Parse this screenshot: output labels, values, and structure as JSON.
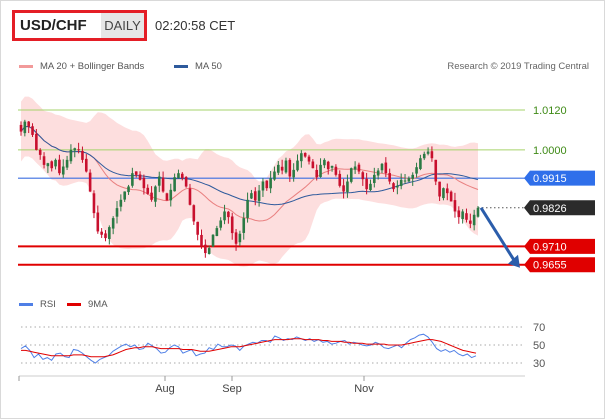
{
  "header": {
    "symbol": "USD/CHF",
    "period": "DAILY",
    "time": "02:20:58 CET"
  },
  "legend": {
    "ma20": "MA 20 + Bollinger Bands",
    "ma50": "MA 50",
    "copyright": "Research © 2019 Trading Central",
    "rsi": "RSI",
    "ma9": "9MA"
  },
  "colors": {
    "ma20": "#e98080",
    "band": "#fcd3d3",
    "ma50": "#2e5a9c",
    "up": "#2b7a44",
    "down": "#c8102e",
    "level_blue": "#3b6fe0",
    "level_red": "#e00000",
    "grid_green": "#a6d36b",
    "rsi": "#4f7fe6",
    "rsi_ma": "#e00000"
  },
  "chart_data": [
    {
      "type": "candlestick",
      "ylim": [
        0.9585,
        1.0195
      ],
      "x_ticks": [
        "Aug",
        "Sep",
        "Nov"
      ],
      "price_labels": [
        {
          "value": 1.012,
          "label": "1.0120",
          "style": "green-line"
        },
        {
          "value": 1.0,
          "label": "1.0000",
          "style": "green-line"
        },
        {
          "value": 0.9915,
          "label": "0.9915",
          "style": "blue-badge"
        },
        {
          "value": 0.9826,
          "label": "0.9826",
          "style": "dark-badge"
        },
        {
          "value": 0.971,
          "label": "0.9710",
          "style": "red-badge"
        },
        {
          "value": 0.9655,
          "label": "0.9655",
          "style": "red-badge"
        }
      ],
      "levels": [
        {
          "value": 1.012,
          "kind": "resistance-green"
        },
        {
          "value": 1.0,
          "kind": "resistance-green"
        },
        {
          "value": 0.9915,
          "kind": "pivot-blue"
        },
        {
          "value": 0.9826,
          "kind": "last-dotted"
        },
        {
          "value": 0.971,
          "kind": "support-red"
        },
        {
          "value": 0.9655,
          "kind": "support-red"
        }
      ],
      "forecast_arrow": {
        "from": 0.9826,
        "to": 0.9655
      },
      "closes": [
        1.0055,
        1.0085,
        1.007,
        1.0045,
        1.0,
        0.9985,
        0.9955,
        0.996,
        0.9945,
        0.997,
        0.993,
        0.995,
        0.997,
        1.0,
        1.0005,
        1.0,
        0.997,
        0.9935,
        0.9875,
        0.981,
        0.9755,
        0.9745,
        0.9735,
        0.9768,
        0.9795,
        0.9825,
        0.985,
        0.9875,
        0.989,
        0.993,
        0.9925,
        0.991,
        0.9885,
        0.9868,
        0.985,
        0.989,
        0.992,
        0.9875,
        0.9848,
        0.988,
        0.9918,
        0.993,
        0.9915,
        0.989,
        0.9835,
        0.9785,
        0.9745,
        0.971,
        0.969,
        0.9705,
        0.9745,
        0.9765,
        0.9788,
        0.9815,
        0.9798,
        0.975,
        0.9718,
        0.9748,
        0.9795,
        0.985,
        0.987,
        0.9848,
        0.9878,
        0.9905,
        0.9885,
        0.9915,
        0.9935,
        0.9955,
        0.9938,
        0.9968,
        0.992,
        0.994,
        0.9968,
        0.999,
        0.998,
        0.9965,
        0.9945,
        0.9918,
        0.9955,
        0.997,
        0.9942,
        0.9952,
        0.9925,
        0.9892,
        0.9875,
        0.9905,
        0.9945,
        0.995,
        0.9935,
        0.9912,
        0.9882,
        0.9898,
        0.9925,
        0.9938,
        0.9958,
        0.993,
        0.9905,
        0.9882,
        0.9892,
        0.991,
        0.9908,
        0.9915,
        0.9925,
        0.9948,
        0.9975,
        0.9988,
        0.9995,
        0.9975,
        0.9905,
        0.986,
        0.9885,
        0.987,
        0.9845,
        0.9815,
        0.9798,
        0.9815,
        0.979,
        0.9778,
        0.9805,
        0.9826
      ]
    },
    {
      "type": "line",
      "name": "RSI panel",
      "y_ticks": [
        70,
        50,
        30
      ],
      "ylim": [
        20,
        80
      ],
      "series": [
        {
          "name": "RSI",
          "values": [
            46,
            49,
            44,
            36,
            40,
            34,
            36,
            33,
            40,
            41,
            37,
            36,
            45,
            44,
            41,
            37,
            33,
            30,
            34,
            36,
            38,
            43,
            46,
            49,
            51,
            48,
            50,
            45,
            46,
            52,
            49,
            46,
            41,
            42,
            47,
            50,
            48,
            41,
            43,
            45,
            38,
            40,
            41,
            47,
            45,
            51,
            48,
            48,
            50,
            49,
            44,
            49,
            51,
            53,
            52,
            55,
            55,
            53,
            60,
            58,
            55,
            57,
            56,
            59,
            57,
            55,
            57,
            54,
            56,
            53,
            54,
            51,
            52,
            54,
            55,
            51,
            53,
            52,
            50,
            49,
            50,
            53,
            51,
            47,
            46,
            48,
            50,
            47,
            52,
            56,
            58,
            61,
            62,
            59,
            53,
            46,
            43,
            45,
            42,
            44,
            40,
            38,
            40,
            36,
            38
          ]
        },
        {
          "name": "9MA",
          "values": [
            44,
            44,
            43,
            42,
            41,
            40,
            39,
            38,
            38,
            38,
            38,
            38,
            39,
            39,
            39,
            38,
            37,
            37,
            37,
            37,
            38,
            39,
            41,
            43,
            45,
            46,
            47,
            47,
            48,
            48,
            48,
            47,
            46,
            46,
            46,
            46,
            46,
            45,
            45,
            45,
            44,
            43,
            43,
            43,
            44,
            45,
            46,
            47,
            48,
            48,
            48,
            49,
            50,
            51,
            52,
            53,
            54,
            55,
            56,
            56,
            56,
            56,
            57,
            57,
            57,
            56,
            56,
            56,
            56,
            55,
            55,
            54,
            54,
            54,
            53,
            53,
            52,
            52,
            52,
            51,
            51,
            51,
            51,
            51,
            50,
            50,
            50,
            50,
            51,
            52,
            53,
            54,
            55,
            56,
            56,
            55,
            54,
            52,
            50,
            48,
            46,
            44,
            43,
            42,
            41
          ]
        }
      ]
    }
  ]
}
